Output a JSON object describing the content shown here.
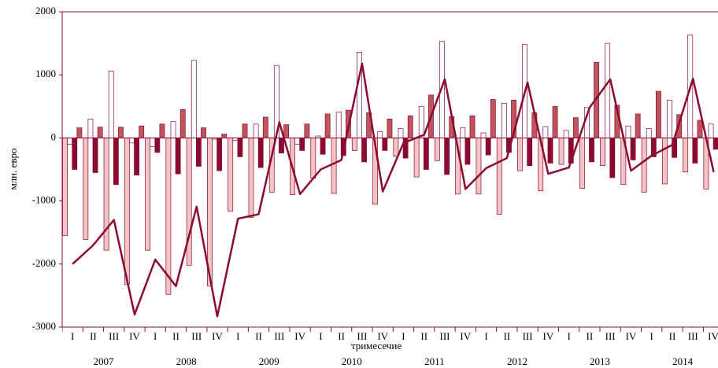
{
  "chart_data": {
    "type": "bar",
    "ylabel": "млн. евро",
    "xlabel": "тримесечие",
    "categories": [
      "I",
      "II",
      "III",
      "IV",
      "I",
      "II",
      "III",
      "IV",
      "I",
      "II",
      "III",
      "IV",
      "I",
      "II",
      "III",
      "IV",
      "I",
      "II",
      "III",
      "IV",
      "I",
      "II",
      "III",
      "IV",
      "I",
      "II",
      "III",
      "IV",
      "I",
      "II",
      "III",
      "IV"
    ],
    "years": [
      "2007",
      "2008",
      "2009",
      "2010",
      "2011",
      "2012",
      "2013",
      "2014"
    ],
    "ylim": [
      -3000,
      2000
    ],
    "yticks": [
      2000,
      1000,
      0,
      -1000,
      -2000,
      -3000
    ],
    "edgecolor": "#8b0a30",
    "series": [
      {
        "type": "bar",
        "color": "#f4c4c4",
        "values": [
          -1550,
          -1610,
          -1780,
          -2320,
          -1780,
          -2480,
          -2020,
          -2350,
          -1160,
          -1260,
          -860,
          -900,
          -640,
          -880,
          -200,
          -1050,
          -290,
          -620,
          -360,
          -890,
          -890,
          -1210,
          -520,
          -840,
          -420,
          -800,
          -440,
          -740,
          -860,
          -730,
          -540,
          -810
        ]
      },
      {
        "type": "bar",
        "color": "#ffffff",
        "values": [
          -100,
          300,
          1060,
          -80,
          -140,
          260,
          1230,
          -20,
          -40,
          220,
          1150,
          -100,
          30,
          410,
          1360,
          100,
          150,
          500,
          1530,
          160,
          80,
          550,
          1480,
          180,
          120,
          480,
          1500,
          190,
          150,
          600,
          1630,
          220
        ]
      },
      {
        "type": "bar",
        "color": "#8b0a30",
        "values": [
          -500,
          -550,
          -740,
          -590,
          -230,
          -570,
          -450,
          -520,
          -300,
          -470,
          -240,
          -200,
          -260,
          -280,
          -380,
          -200,
          -320,
          -500,
          -580,
          -420,
          -270,
          -230,
          -440,
          -400,
          -400,
          -380,
          -630,
          -350,
          -300,
          -310,
          -400,
          -180
        ]
      },
      {
        "type": "bar",
        "color": "#c0545c",
        "values": [
          160,
          170,
          170,
          190,
          220,
          450,
          160,
          60,
          220,
          330,
          210,
          220,
          380,
          440,
          400,
          300,
          350,
          680,
          340,
          350,
          610,
          600,
          400,
          500,
          320,
          1200,
          520,
          380,
          740,
          370,
          280,
          null
        ]
      },
      {
        "type": "line",
        "color": "#8b0a30",
        "values": [
          -2000,
          -1700,
          -1300,
          -2800,
          -1930,
          -2350,
          -1090,
          -2830,
          -1280,
          -1210,
          250,
          -890,
          -500,
          -350,
          1180,
          -850,
          -80,
          50,
          930,
          -810,
          -480,
          -320,
          880,
          -570,
          -470,
          480,
          930,
          -520,
          -280,
          -110,
          940,
          -540
        ]
      }
    ]
  }
}
